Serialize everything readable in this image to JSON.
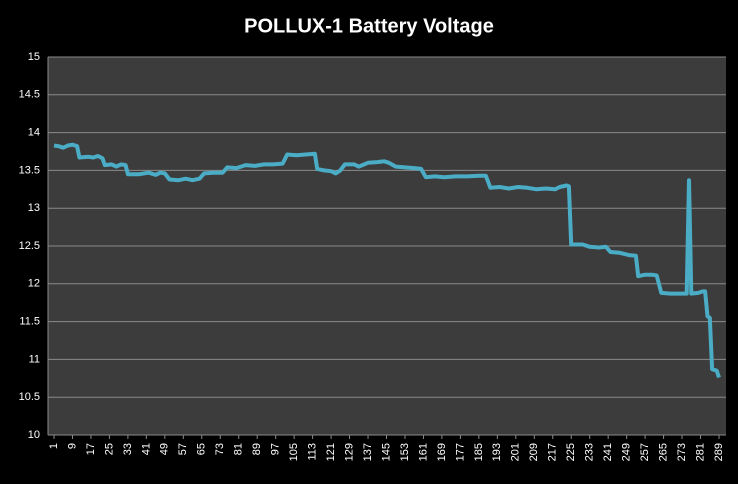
{
  "chart_data": {
    "type": "line",
    "title": "POLLUX-1  Battery Voltage",
    "x": [
      1,
      3,
      5,
      7,
      9,
      11,
      12,
      16,
      18,
      20,
      22,
      23,
      26,
      28,
      30,
      32,
      33,
      38,
      42,
      45,
      47,
      49,
      51,
      55,
      58,
      61,
      64,
      66,
      70,
      74,
      76,
      80,
      84,
      88,
      92,
      96,
      100,
      102,
      106,
      110,
      114,
      115,
      118,
      121,
      123,
      125,
      127,
      131,
      133,
      137,
      141,
      144,
      146,
      149,
      153,
      157,
      160,
      162,
      166,
      170,
      175,
      180,
      185,
      188,
      190,
      194,
      198,
      202,
      206,
      210,
      214,
      218,
      220,
      223,
      224,
      225,
      230,
      233,
      237,
      240,
      242,
      246,
      250,
      253,
      254,
      257,
      260,
      262,
      264,
      268,
      272,
      275,
      276,
      277,
      280,
      282,
      283,
      284,
      285,
      286,
      288,
      289
    ],
    "series": [
      {
        "color": "#4bacc6",
        "values": [
          13.83,
          13.82,
          13.8,
          13.83,
          13.84,
          13.82,
          13.67,
          13.68,
          13.67,
          13.69,
          13.66,
          13.57,
          13.58,
          13.55,
          13.58,
          13.57,
          13.45,
          13.45,
          13.47,
          13.44,
          13.47,
          13.46,
          13.38,
          13.37,
          13.39,
          13.37,
          13.39,
          13.46,
          13.47,
          13.47,
          13.54,
          13.53,
          13.57,
          13.56,
          13.58,
          13.58,
          13.59,
          13.71,
          13.7,
          13.71,
          13.72,
          13.52,
          13.5,
          13.49,
          13.46,
          13.5,
          13.58,
          13.58,
          13.55,
          13.6,
          13.61,
          13.62,
          13.6,
          13.55,
          13.54,
          13.53,
          13.52,
          13.41,
          13.42,
          13.41,
          13.42,
          13.42,
          13.43,
          13.43,
          13.27,
          13.28,
          13.26,
          13.28,
          13.27,
          13.25,
          13.26,
          13.25,
          13.28,
          13.3,
          13.29,
          12.52,
          12.52,
          12.49,
          12.48,
          12.49,
          12.42,
          12.41,
          12.38,
          12.37,
          12.1,
          12.12,
          12.12,
          12.11,
          11.88,
          11.87,
          11.87,
          11.87,
          13.37,
          11.87,
          11.88,
          11.9,
          11.9,
          11.57,
          11.55,
          10.87,
          10.85,
          10.76
        ]
      }
    ],
    "xlim": [
      1,
      289
    ],
    "xticks": [
      1,
      9,
      17,
      25,
      33,
      41,
      49,
      57,
      65,
      73,
      81,
      89,
      97,
      105,
      113,
      121,
      129,
      137,
      145,
      153,
      161,
      169,
      177,
      185,
      193,
      201,
      209,
      217,
      225,
      233,
      241,
      249,
      257,
      265,
      273,
      281,
      289
    ],
    "ylim": [
      10,
      15
    ],
    "yticks": [
      10,
      10.5,
      11,
      11.5,
      12,
      12.5,
      13,
      13.5,
      14,
      14.5,
      15
    ],
    "grid": true
  }
}
